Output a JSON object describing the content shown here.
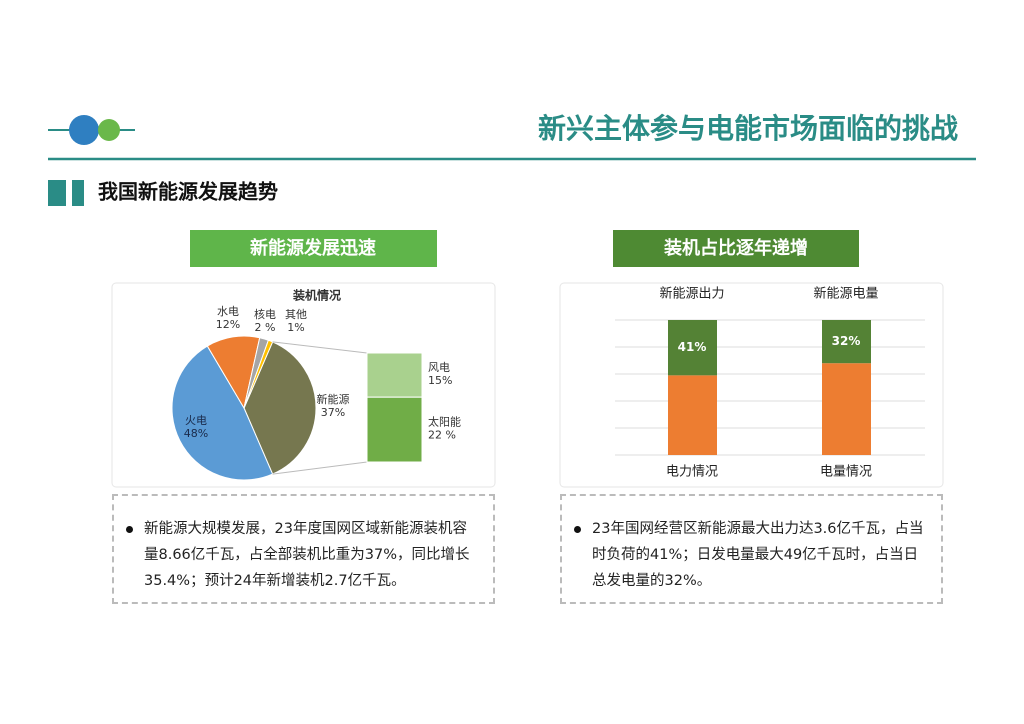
{
  "header": {
    "title": "新兴主体参与电能市场面临的挑战"
  },
  "section": {
    "title": "我国新能源发展趋势"
  },
  "panels": [
    {
      "banner": "新能源发展迅速",
      "bullet": "新能源大规模发展，23年度国网区域新能源装机容量8.66亿千瓦，占全部装机比重为37%，同比增长35.4%；预计24年新增装机2.7亿千瓦。"
    },
    {
      "banner": "装机占比逐年递增",
      "bullet": "23年国网经营区新能源最大出力达3.6亿千瓦，占当时负荷的41%；日发电量最大49亿千瓦时，占当日总发电量的32%。"
    }
  ],
  "chart_data": [
    {
      "type": "pie",
      "title": "装机情况",
      "categories": [
        "新能源",
        "火电",
        "水电",
        "核电",
        "其他"
      ],
      "values": [
        37,
        48,
        12,
        2,
        1
      ],
      "value_labels": [
        "37%",
        "48%",
        "12%",
        "2 %",
        "1%"
      ],
      "colors": [
        "#76774f",
        "#5b9bd5",
        "#ed7d31",
        "#a5a5a5",
        "#ffc000"
      ],
      "breakout": {
        "categories": [
          "风电",
          "太阳能"
        ],
        "values": [
          15,
          22
        ],
        "value_labels": [
          "15%",
          "22 %"
        ],
        "colors": [
          "#a9d18e",
          "#70ad47"
        ]
      }
    },
    {
      "type": "stacked_bar",
      "categories": [
        "电力情况",
        "电量情况"
      ],
      "top_labels": [
        "新能源出力",
        "新能源电量"
      ],
      "series": [
        {
          "color": "#ed7d31",
          "values": [
            59,
            68
          ]
        },
        {
          "color": "#548235",
          "values": [
            41,
            32
          ],
          "value_labels": [
            "41%",
            "32%"
          ]
        }
      ],
      "ylim": [
        0,
        100
      ],
      "yticks": [
        0,
        20,
        40,
        60,
        80,
        100
      ],
      "grid": true
    }
  ]
}
